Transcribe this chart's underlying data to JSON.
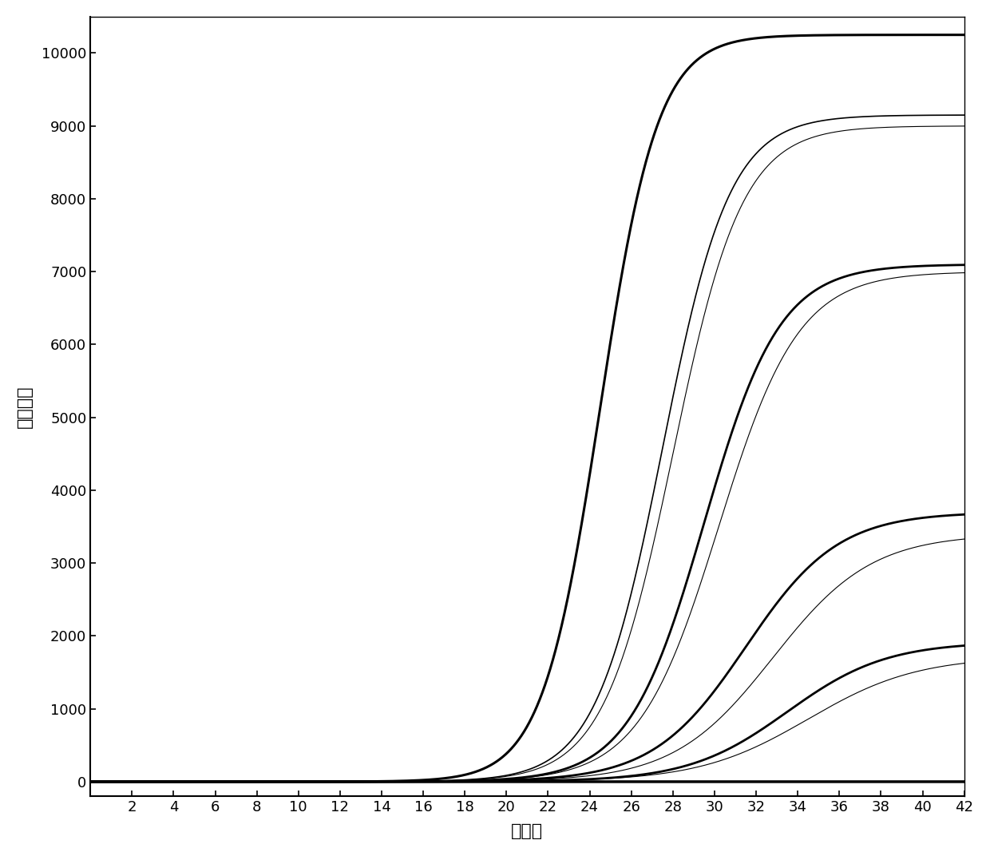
{
  "title": "",
  "xlabel": "循环数",
  "ylabel": "荧光强度",
  "xlim": [
    0,
    42
  ],
  "ylim": [
    -200,
    10500
  ],
  "xticks": [
    2,
    4,
    6,
    8,
    10,
    12,
    14,
    16,
    18,
    20,
    22,
    24,
    26,
    28,
    30,
    32,
    34,
    36,
    38,
    40,
    42
  ],
  "yticks": [
    0,
    1000,
    2000,
    3000,
    4000,
    5000,
    6000,
    7000,
    8000,
    9000,
    10000
  ],
  "background_color": "#ffffff",
  "line_color": "#000000",
  "curves": [
    {
      "plateau": 10250,
      "midpoint": 24.5,
      "steepness": 0.72,
      "lw": 2.2
    },
    {
      "plateau": 9150,
      "midpoint": 27.5,
      "steepness": 0.62,
      "lw": 1.2
    },
    {
      "plateau": 9000,
      "midpoint": 28.0,
      "steepness": 0.6,
      "lw": 0.8
    },
    {
      "plateau": 7100,
      "midpoint": 29.5,
      "steepness": 0.55,
      "lw": 2.0
    },
    {
      "plateau": 7000,
      "midpoint": 30.2,
      "steepness": 0.52,
      "lw": 0.8
    },
    {
      "plateau": 3700,
      "midpoint": 31.5,
      "steepness": 0.45,
      "lw": 2.0
    },
    {
      "plateau": 3400,
      "midpoint": 32.8,
      "steepness": 0.42,
      "lw": 0.8
    },
    {
      "plateau": 1920,
      "midpoint": 33.5,
      "steepness": 0.42,
      "lw": 2.0
    },
    {
      "plateau": 1720,
      "midpoint": 34.5,
      "steepness": 0.38,
      "lw": 0.8
    },
    {
      "plateau": -60,
      "midpoint": 60.0,
      "steepness": 0.55,
      "lw": 2.5
    }
  ]
}
